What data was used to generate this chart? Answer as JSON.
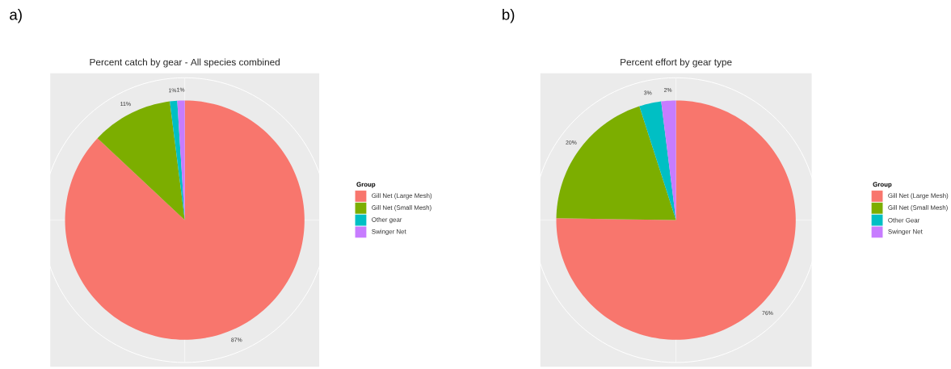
{
  "chart_data": [
    {
      "type": "pie",
      "title": "Percent catch by gear - All species combined",
      "annotations": [
        "a)"
      ],
      "legend_title": "Group",
      "legend": "right",
      "categories": [
        "Gill Net (Large Mesh)",
        "Gill Net (Small Mesh)",
        "Other gear",
        "Swinger Net"
      ],
      "values": [
        87,
        11,
        1,
        1
      ],
      "colors": [
        "#f8766d",
        "#7cae00",
        "#00bfc4",
        "#c77cff"
      ],
      "value_labels": [
        "87%",
        "11%",
        "1%",
        "1%"
      ]
    },
    {
      "type": "pie",
      "title": "Percent effort by gear type",
      "annotations": [
        "b)"
      ],
      "legend_title": "Group",
      "legend": "right",
      "categories": [
        "Gill Net (Large Mesh)",
        "Gill Net (Small Mesh)",
        "Other Gear",
        "Swinger Net"
      ],
      "values": [
        76,
        20,
        3,
        2
      ],
      "colors": [
        "#f8766d",
        "#7cae00",
        "#00bfc4",
        "#c77cff"
      ],
      "value_labels": [
        "76%",
        "20%",
        "3%",
        "2%"
      ]
    }
  ]
}
